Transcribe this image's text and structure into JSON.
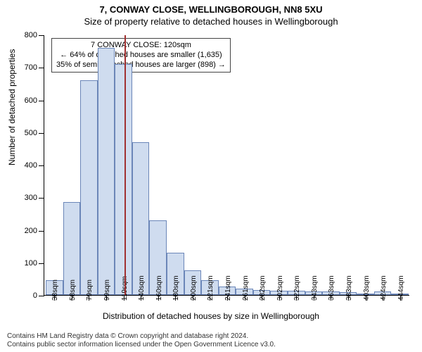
{
  "title": "7, CONWAY CLOSE, WELLINGBOROUGH, NN8 5XU",
  "subtitle": "Size of property relative to detached houses in Wellingborough",
  "chart": {
    "type": "histogram",
    "ylabel": "Number of detached properties",
    "xlabel": "Distribution of detached houses by size in Wellingborough",
    "ylim": [
      0,
      800
    ],
    "yticks": [
      0,
      100,
      200,
      300,
      400,
      500,
      600,
      700,
      800
    ],
    "xticks": [
      "38sqm",
      "58sqm",
      "79sqm",
      "99sqm",
      "119sqm",
      "140sqm",
      "160sqm",
      "180sqm",
      "200sqm",
      "221sqm",
      "241sqm",
      "261sqm",
      "282sqm",
      "302sqm",
      "322sqm",
      "343sqm",
      "363sqm",
      "383sqm",
      "403sqm",
      "424sqm",
      "444sqm"
    ],
    "values": [
      45,
      285,
      660,
      760,
      710,
      470,
      230,
      130,
      75,
      45,
      25,
      20,
      15,
      12,
      12,
      10,
      10,
      8,
      5,
      10,
      5
    ],
    "bar_fill": "#cfdcef",
    "bar_stroke": "#6b86b8",
    "background": "#ffffff",
    "axis_color": "#000000",
    "label_fontsize": 12,
    "tick_fontsize": 11
  },
  "marker": {
    "position_sqm": 120,
    "color": "#a03030",
    "box": {
      "line1": "7 CONWAY CLOSE: 120sqm",
      "line2": "← 64% of detached houses are smaller (1,635)",
      "line3": "35% of semi-detached houses are larger (898) →"
    }
  },
  "footnote": {
    "line1": "Contains HM Land Registry data © Crown copyright and database right 2024.",
    "line2": "Contains public sector information licensed under the Open Government Licence v3.0."
  }
}
